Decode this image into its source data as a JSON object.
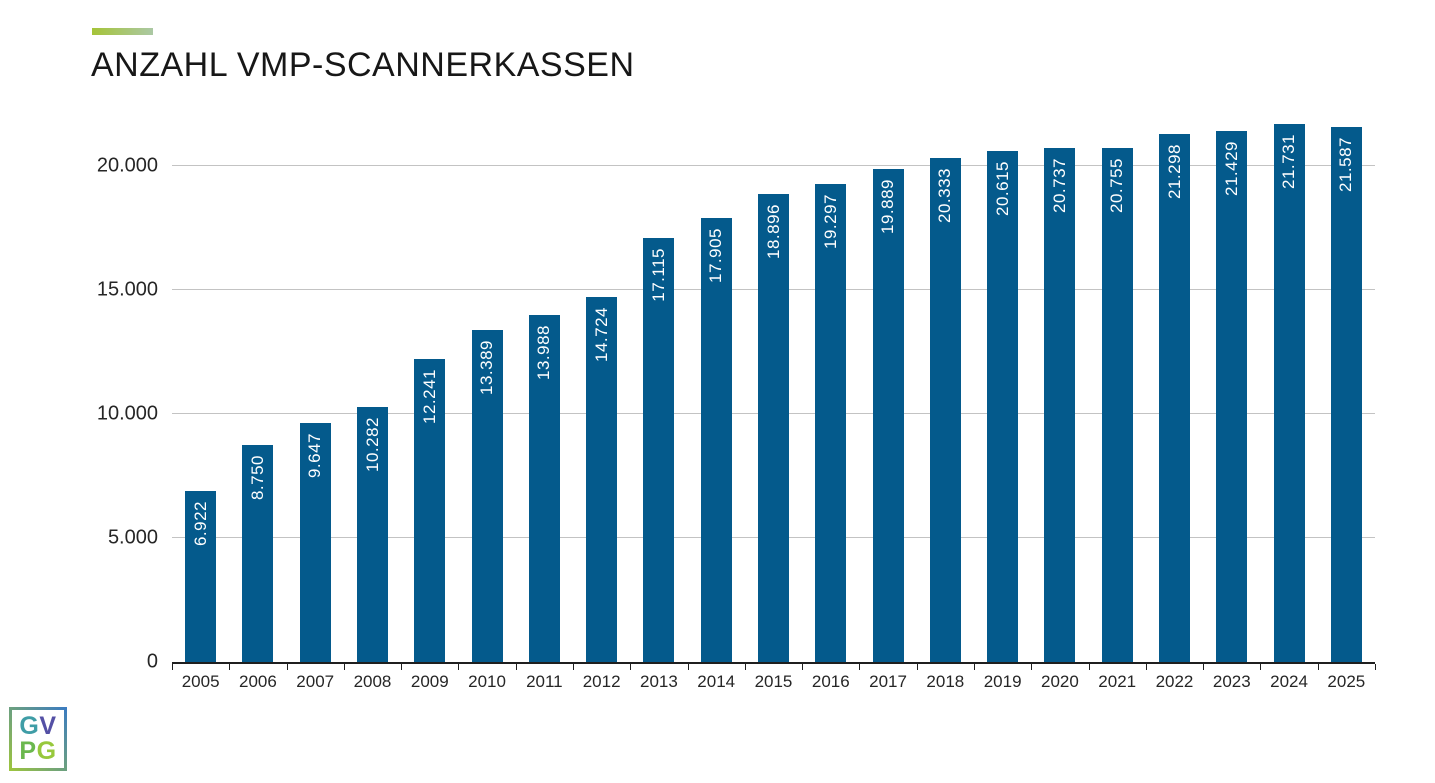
{
  "slide": {
    "title": "ANZAHL VMP-SCANNERKASSEN",
    "accent_bar": {
      "color_from": "#a5c438",
      "color_to": "#abc8a4"
    }
  },
  "logo": {
    "border_color_from": "#9cc43f",
    "border_color_to": "#3c7cc0",
    "rows": [
      [
        {
          "ch": "G",
          "color": "#3f9da6"
        },
        {
          "ch": "V",
          "color": "#5450a5"
        }
      ],
      [
        {
          "ch": "P",
          "color": "#6bb84e"
        },
        {
          "ch": "G",
          "color": "#97c83c"
        }
      ]
    ]
  },
  "chart_data": {
    "type": "bar",
    "title": "ANZAHL VMP-SCANNERKASSEN",
    "xlabel": "",
    "ylabel": "",
    "categories": [
      "2005",
      "2006",
      "2007",
      "2008",
      "2009",
      "2010",
      "2011",
      "2012",
      "2013",
      "2014",
      "2015",
      "2016",
      "2017",
      "2018",
      "2019",
      "2020",
      "2021",
      "2022",
      "2023",
      "2024",
      "2025"
    ],
    "values": [
      6922,
      8750,
      9647,
      10282,
      12241,
      13389,
      13988,
      14724,
      17115,
      17905,
      18896,
      19297,
      19889,
      20333,
      20615,
      20737,
      20755,
      21298,
      21429,
      21731,
      21587
    ],
    "value_labels": [
      "6.922",
      "8.750",
      "9.647",
      "10.282",
      "12.241",
      "13.389",
      "13.988",
      "14.724",
      "17.115",
      "17.905",
      "18.896",
      "19.297",
      "19.889",
      "20.333",
      "20.615",
      "20.737",
      "20.755",
      "21.298",
      "21.429",
      "21.731",
      "21.587"
    ],
    "yticks": [
      {
        "label": "0",
        "value": 0
      },
      {
        "label": "5.000",
        "value": 5000
      },
      {
        "label": "10.000",
        "value": 10000
      },
      {
        "label": "15.000",
        "value": 15000
      },
      {
        "label": "20.000",
        "value": 20000
      }
    ],
    "ylim": [
      0,
      22480
    ],
    "grid": true,
    "legend": "none",
    "bar_color": "#045a8c",
    "value_label_color": "#ffffff",
    "gridline_color": "#c3c3c3",
    "axis_color": "#1f1f1f",
    "tick_label_color": "#262626"
  }
}
